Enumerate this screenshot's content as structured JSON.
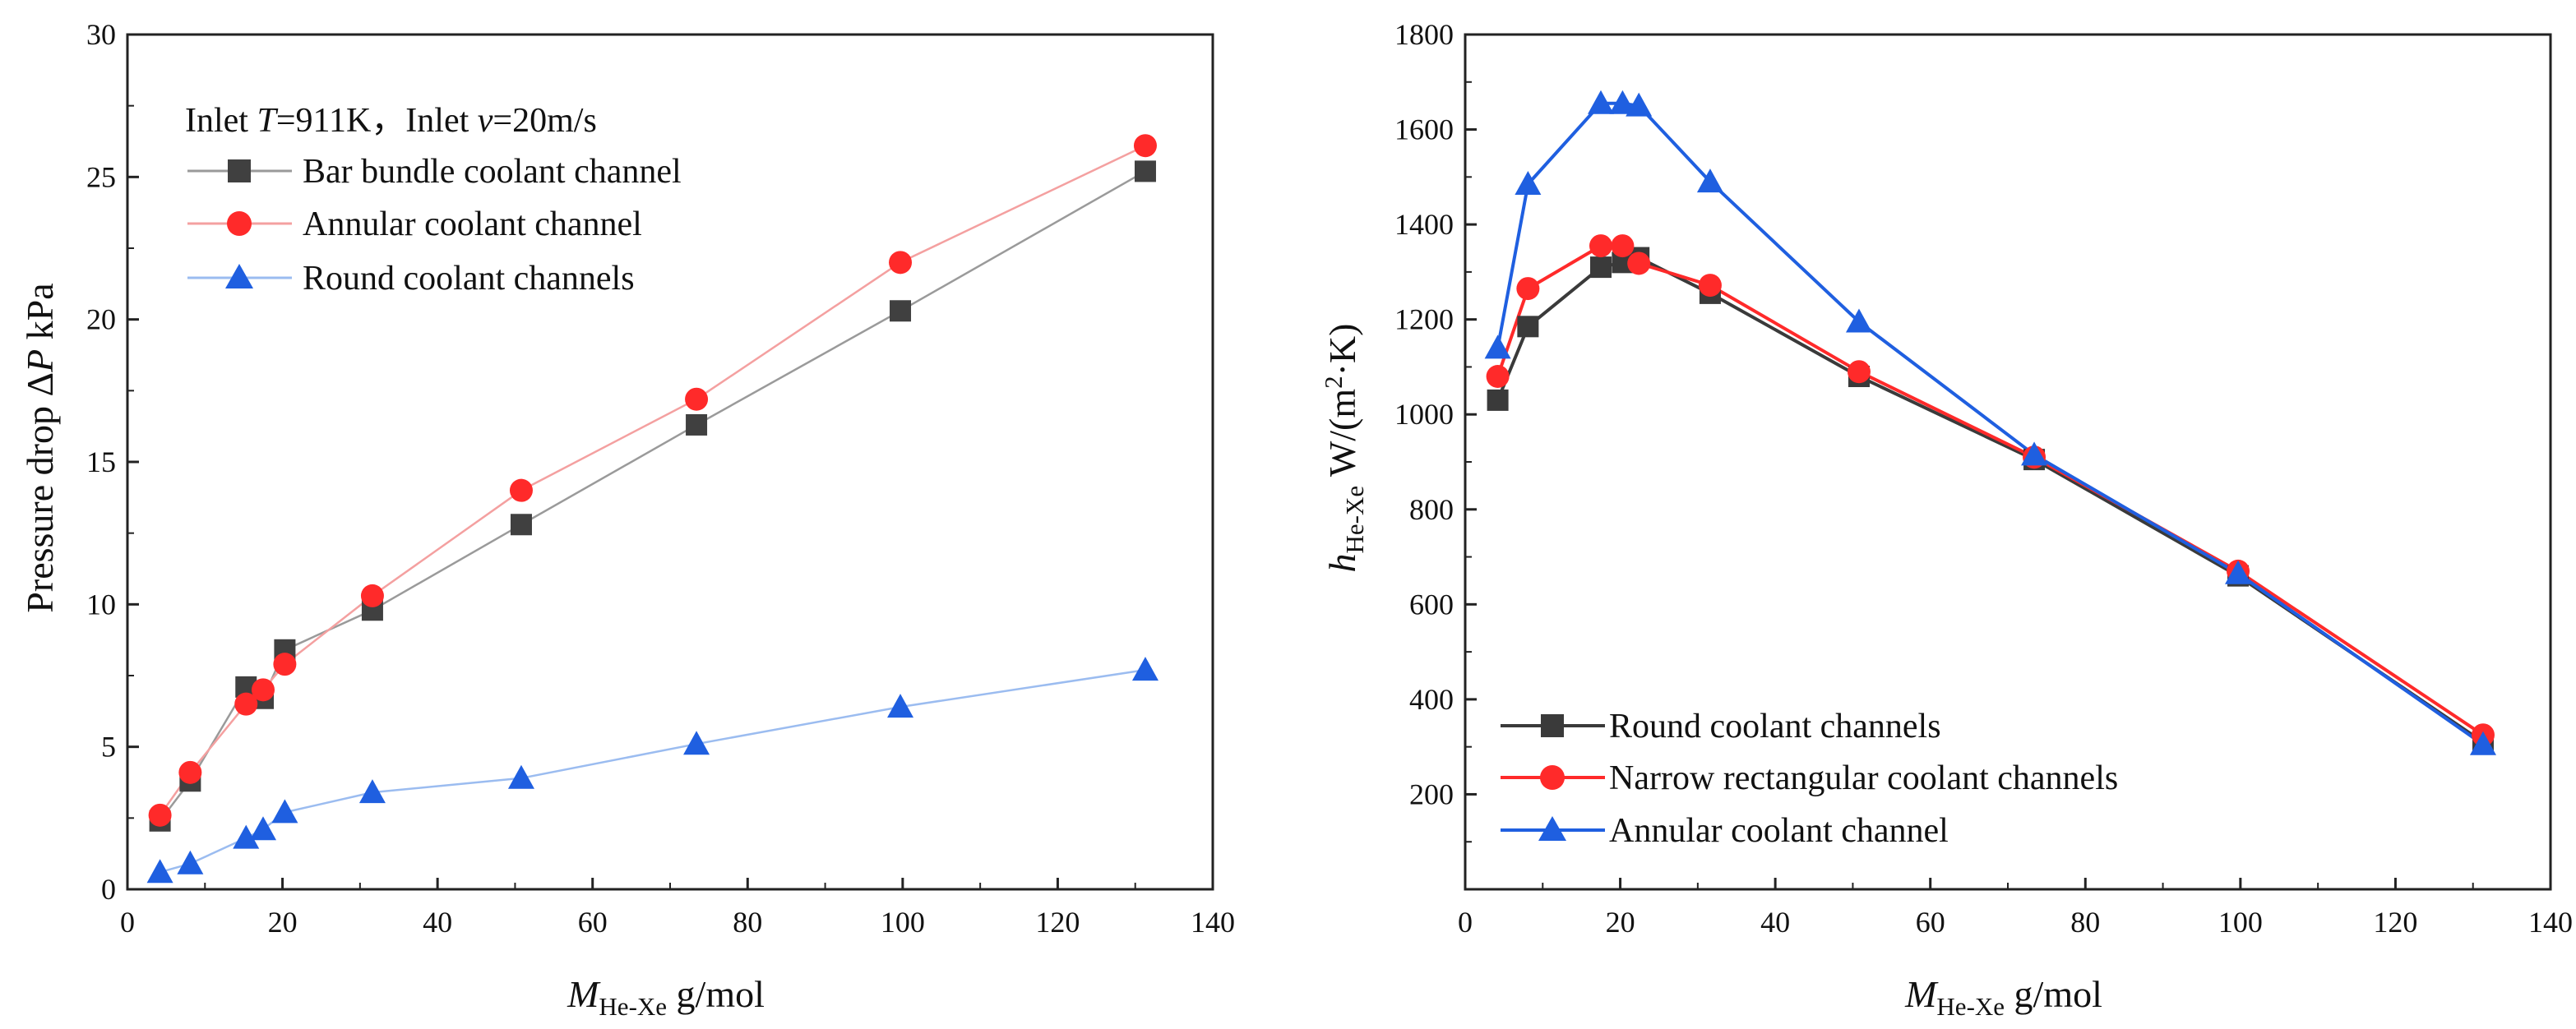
{
  "chart_data": [
    {
      "type": "line",
      "title": "",
      "annotation": {
        "prefix": "Inlet ",
        "t_var": "T",
        "t_value": "=911K，Inlet ",
        "v_var": "v",
        "v_value": "=20m/s"
      },
      "xlabel": {
        "main": "M",
        "sub": "He-Xe",
        "unit": " g/mol"
      },
      "ylabel": {
        "text": "Pressure drop ",
        "delta": "Δ",
        "var": "P",
        "unit": " kPa"
      },
      "xlim": [
        0,
        140
      ],
      "ylim": [
        0,
        30
      ],
      "xticks": [
        "0",
        "20",
        "40",
        "60",
        "80",
        "100",
        "120",
        "140"
      ],
      "yticks": [
        "0",
        "5",
        "10",
        "15",
        "20",
        "25",
        "30"
      ],
      "grid": false,
      "legend_position": "top-left",
      "series": [
        {
          "name": "Bar bundle coolant channel",
          "marker": "square",
          "color": "#404040",
          "line_color": "#9a9a9a",
          "x": [
            4.2,
            8.1,
            15.3,
            17.5,
            20.3,
            31.6,
            50.8,
            73.4,
            99.7,
            131.3
          ],
          "y": [
            2.4,
            3.8,
            7.1,
            6.7,
            8.4,
            9.8,
            12.8,
            16.3,
            20.3,
            25.2
          ]
        },
        {
          "name": "Annular coolant channel",
          "marker": "circle",
          "color": "#ff2a2a",
          "line_color": "#f4a0a0",
          "x": [
            4.2,
            8.1,
            15.3,
            17.5,
            20.3,
            31.6,
            50.8,
            73.4,
            99.7,
            131.3
          ],
          "y": [
            2.6,
            4.1,
            6.5,
            7.0,
            7.9,
            10.3,
            14.0,
            17.2,
            22.0,
            26.1
          ]
        },
        {
          "name": "Round coolant channels",
          "marker": "triangle",
          "color": "#1f5fe0",
          "line_color": "#9bbcf0",
          "x": [
            4.2,
            8.1,
            15.3,
            17.5,
            20.3,
            31.6,
            50.8,
            73.4,
            99.7,
            131.3
          ],
          "y": [
            0.6,
            0.9,
            1.8,
            2.1,
            2.7,
            3.4,
            3.9,
            5.1,
            6.4,
            7.7
          ]
        }
      ]
    },
    {
      "type": "line",
      "title": "",
      "xlabel": {
        "main": "M",
        "sub": "He-Xe",
        "unit": " g/mol"
      },
      "ylabel": {
        "main": "h",
        "sub": "He-Xe",
        "unit": " W/(m",
        "sup": "2",
        "unit_end": "·K)"
      },
      "xlim": [
        0,
        140
      ],
      "ylim": [
        0,
        1800
      ],
      "xticks": [
        "0",
        "20",
        "40",
        "60",
        "80",
        "100",
        "120",
        "140"
      ],
      "yticks": [
        "200",
        "400",
        "600",
        "800",
        "1000",
        "1200",
        "1400",
        "1600",
        "1800"
      ],
      "grid": false,
      "legend_position": "bottom-left",
      "series": [
        {
          "name": "Round coolant channels",
          "marker": "square",
          "color": "#3a3a3a",
          "line_color": "#3a3a3a",
          "x": [
            4.2,
            8.1,
            17.5,
            20.3,
            22.4,
            31.6,
            50.8,
            73.4,
            99.7,
            131.3
          ],
          "y": [
            1030,
            1185,
            1310,
            1320,
            1330,
            1255,
            1080,
            905,
            660,
            310
          ]
        },
        {
          "name": "Narrow rectangular coolant channels",
          "marker": "circle",
          "color": "#ff2a2a",
          "line_color": "#ff2a2a",
          "x": [
            4.2,
            8.1,
            17.5,
            20.3,
            22.4,
            31.6,
            50.8,
            73.4,
            99.7,
            131.3
          ],
          "y": [
            1080,
            1265,
            1355,
            1355,
            1318,
            1272,
            1090,
            910,
            670,
            325
          ]
        },
        {
          "name": "Annular coolant channel",
          "marker": "triangle",
          "color": "#1f5fe0",
          "line_color": "#1f5fe0",
          "x": [
            4.2,
            8.1,
            17.5,
            20.3,
            22.4,
            31.6,
            50.8,
            73.4,
            99.7,
            131.3
          ],
          "y": [
            1140,
            1485,
            1655,
            1655,
            1650,
            1490,
            1195,
            915,
            665,
            305
          ]
        }
      ]
    }
  ]
}
